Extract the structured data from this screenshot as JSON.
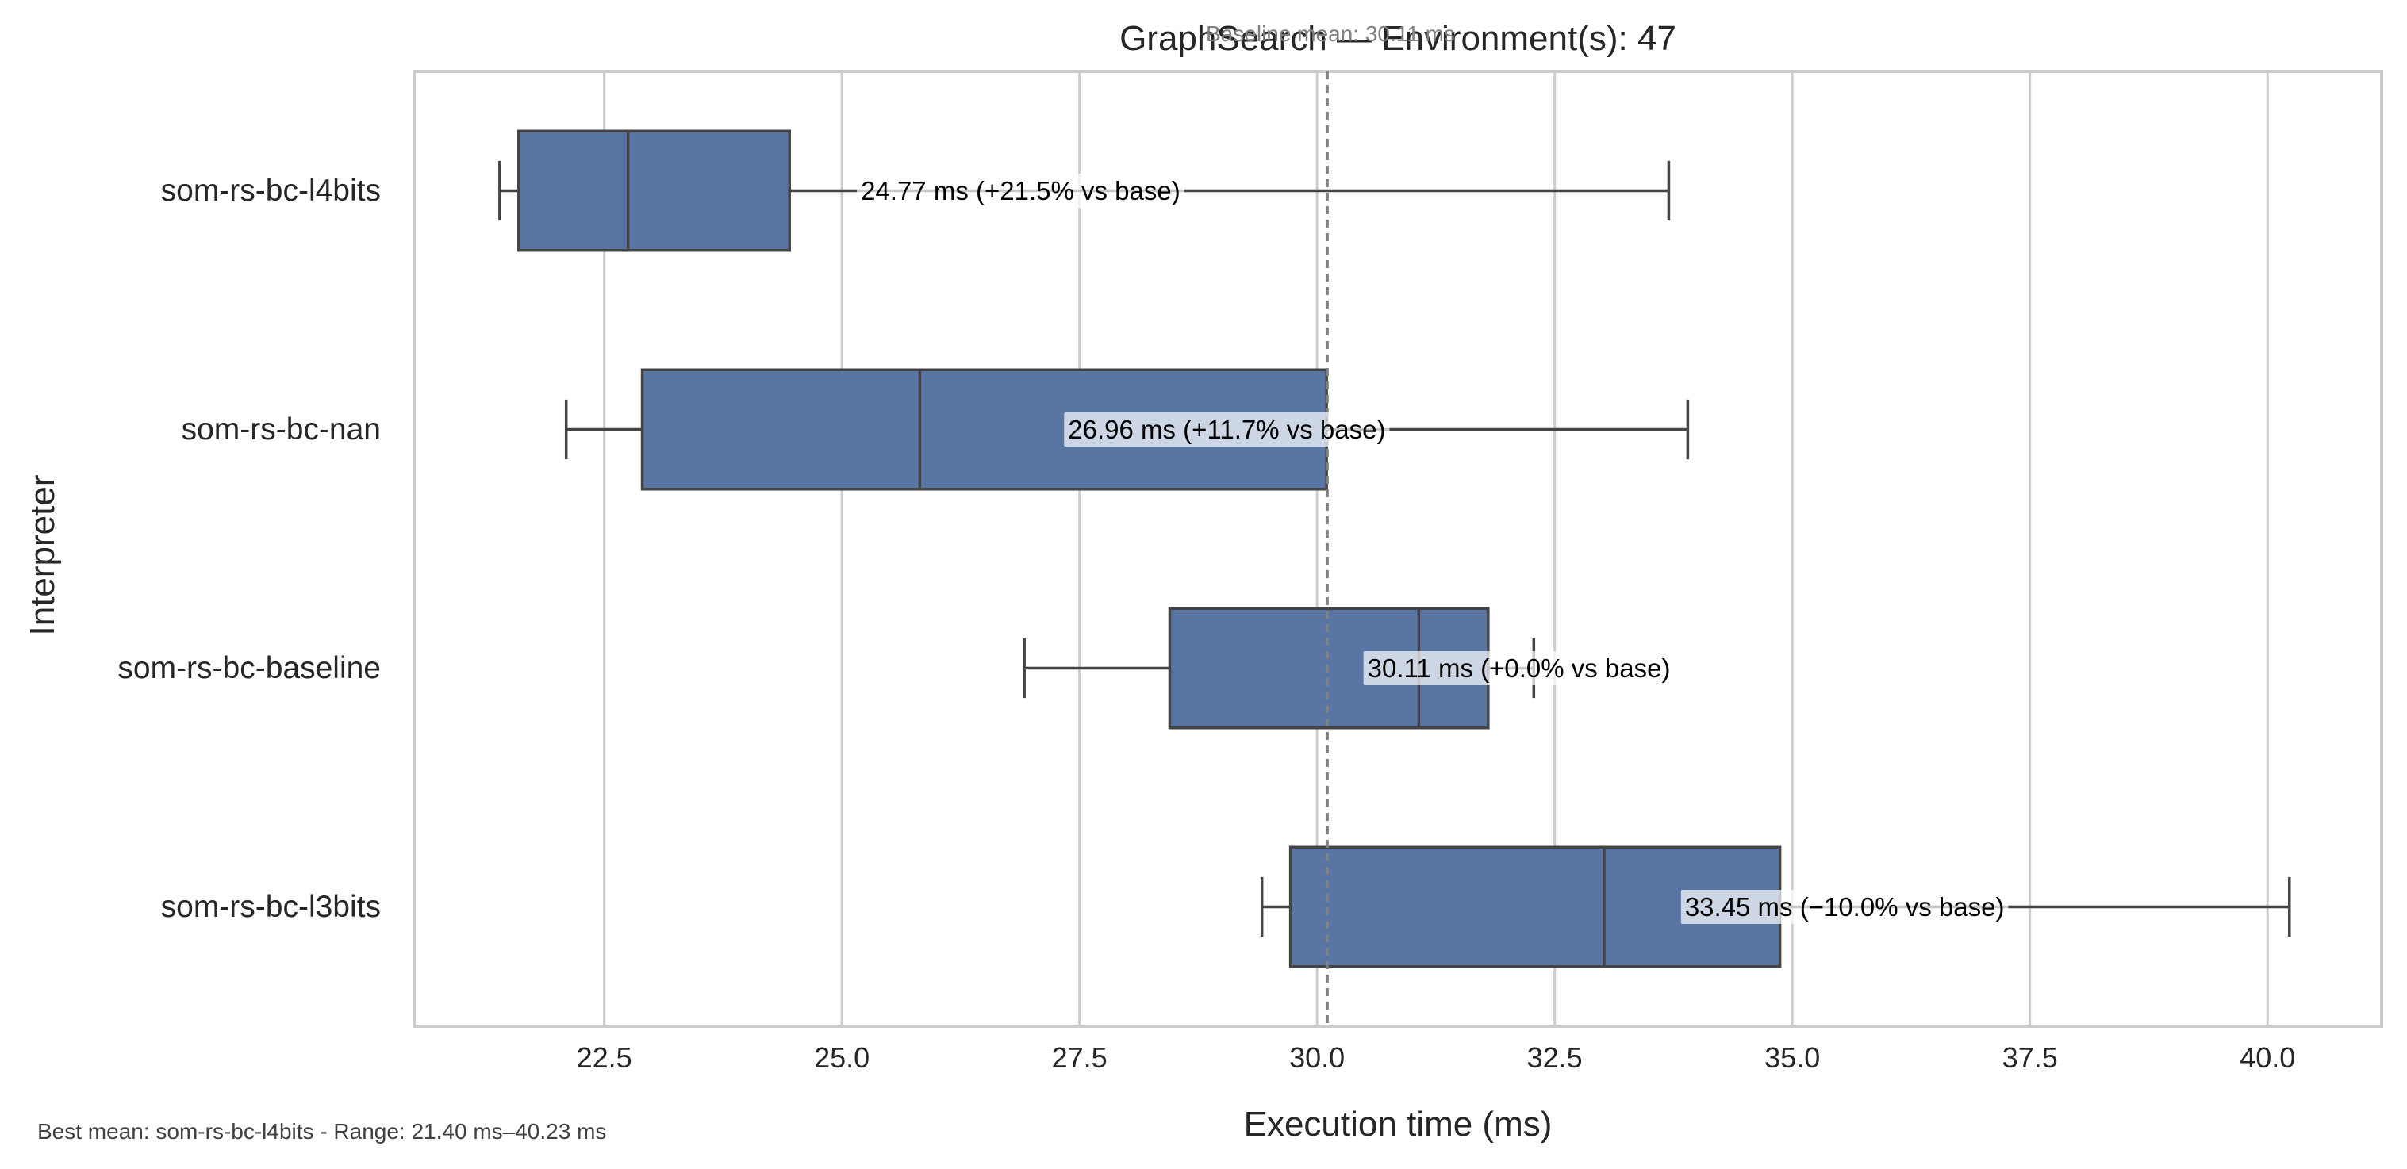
{
  "chart_data": {
    "type": "box",
    "orientation": "horizontal",
    "title": "GraphSearch — Environment(s): 47",
    "xlabel": "Execution time (ms)",
    "ylabel": "Interpreter",
    "xlim": [
      20.5,
      41.2
    ],
    "xticks": [
      22.5,
      25.0,
      27.5,
      30.0,
      32.5,
      35.0,
      37.5,
      40.0
    ],
    "xtick_labels": [
      "22.5",
      "25.0",
      "27.5",
      "30.0",
      "32.5",
      "35.0",
      "37.5",
      "40.0"
    ],
    "grid": true,
    "box_color": "#5975a4",
    "box_edge_color": "#444444",
    "baseline": {
      "value": 30.11,
      "label": "Baseline mean: 30.11 ms",
      "color": "#808080"
    },
    "series": [
      {
        "name": "som-rs-bc-l4bits",
        "whisker_low": 21.4,
        "q1": 21.6,
        "median": 22.75,
        "q3": 24.45,
        "whisker_high": 33.7,
        "annotation": "24.77 ms  (+21.5% vs base)",
        "annotation_x": 25.2
      },
      {
        "name": "som-rs-bc-nan",
        "whisker_low": 22.1,
        "q1": 22.9,
        "median": 25.82,
        "q3": 30.1,
        "whisker_high": 33.9,
        "annotation": "26.96 ms  (+11.7% vs base)",
        "annotation_x": 27.38
      },
      {
        "name": "som-rs-bc-baseline",
        "whisker_low": 26.92,
        "q1": 28.45,
        "median": 31.07,
        "q3": 31.8,
        "whisker_high": 32.28,
        "annotation": "30.11 ms  (+0.0% vs base)",
        "annotation_x": 30.53
      },
      {
        "name": "som-rs-bc-l3bits",
        "whisker_low": 29.42,
        "q1": 29.72,
        "median": 33.02,
        "q3": 34.87,
        "whisker_high": 40.23,
        "annotation": "33.45 ms  (−10.0% vs base)",
        "annotation_x": 33.87
      }
    ],
    "footer": "Best mean: som-rs-bc-l4bits - Range: 21.40 ms–40.23 ms"
  }
}
